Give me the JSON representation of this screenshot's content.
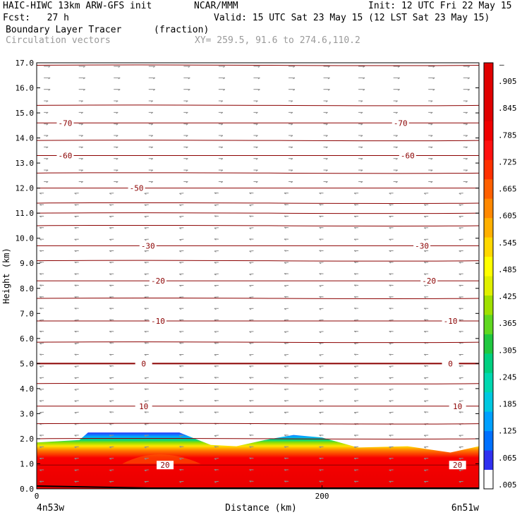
{
  "header": {
    "model": "HAIC-HIWC 13km ARW-GFS init",
    "org": "NCAR/MMM",
    "init": "Init: 12 UTC Fri 22 May 15",
    "fcst": "Fcst:   27 h",
    "valid": "Valid: 15 UTC Sat 23 May 15 (12 LST Sat 23 May 15)",
    "field": "Boundary Layer Tracer",
    "units": "(fraction)",
    "vectors": "Circulation vectors",
    "xy": "XY= 259.5, 91.6 to 274.6,110.2"
  },
  "chart_data": {
    "type": "heatmap",
    "ylabel": "Height (km)",
    "xlabel": "Distance (km)",
    "x_left_label": "4n53w",
    "x_right_label": "6n51w",
    "xlim": [
      0,
      310
    ],
    "ylim": [
      0,
      17
    ],
    "x_ticks": [
      0,
      200
    ],
    "y_ticks": [
      "0.0",
      "1.0",
      "2.0",
      "3.0",
      "4.0",
      "5.0",
      "6.0",
      "7.0",
      "8.0",
      "9.0",
      "10.0",
      "11.0",
      "12.0",
      "13.0",
      "14.0",
      "15.0",
      "16.0",
      "17.0"
    ],
    "tracer_top_km": [
      {
        "x": 0,
        "y": 1.85
      },
      {
        "x": 30,
        "y": 1.95
      },
      {
        "x": 36,
        "y": 2.25
      },
      {
        "x": 55,
        "y": 2.25
      },
      {
        "x": 100,
        "y": 2.25
      },
      {
        "x": 122,
        "y": 1.75
      },
      {
        "x": 140,
        "y": 1.7
      },
      {
        "x": 160,
        "y": 1.95
      },
      {
        "x": 180,
        "y": 2.15
      },
      {
        "x": 200,
        "y": 2.05
      },
      {
        "x": 225,
        "y": 1.65
      },
      {
        "x": 260,
        "y": 1.7
      },
      {
        "x": 290,
        "y": 1.45
      },
      {
        "x": 310,
        "y": 1.7
      }
    ],
    "temperature_contours": [
      {
        "label": "-70",
        "y": 14.6,
        "labels_at_x": [
          20,
          255
        ]
      },
      {
        "label": "-60",
        "y": 13.3,
        "labels_at_x": [
          20,
          260
        ]
      },
      {
        "label": "-50",
        "y": 12.0,
        "labels_at_x": [
          70
        ]
      },
      {
        "label": "-30",
        "y": 9.7,
        "labels_at_x": [
          78,
          270
        ]
      },
      {
        "label": "-20",
        "y": 8.3,
        "labels_at_x": [
          85,
          275
        ]
      },
      {
        "label": "-10",
        "y": 6.7,
        "labels_at_x": [
          85,
          290
        ]
      },
      {
        "label": "0",
        "y": 5.0,
        "labels_at_x": [
          75,
          290
        ]
      },
      {
        "label": "10",
        "y": 3.3,
        "labels_at_x": [
          75,
          295
        ]
      },
      {
        "label": "20",
        "y": 0.95,
        "labels_at_x": [
          90,
          295
        ]
      }
    ],
    "colorbar": {
      "labels": [
        ".005",
        ".065",
        ".125",
        ".185",
        ".245",
        ".305",
        ".365",
        ".425",
        ".485",
        ".545",
        ".605",
        ".665",
        ".725",
        ".785",
        ".845",
        ".905"
      ],
      "colors": [
        "#ffffff",
        "#3030f0",
        "#0070ff",
        "#00a0ff",
        "#00c8e0",
        "#00d8b0",
        "#00d080",
        "#20c840",
        "#60d820",
        "#a0e000",
        "#e0f000",
        "#ffff00",
        "#ffd800",
        "#ffb000",
        "#ff8800",
        "#ff6000",
        "#ff3000",
        "#ff1010",
        "#f00000",
        "#e00000",
        "#e00000",
        "#e00000"
      ],
      "top_mark": "–"
    }
  }
}
